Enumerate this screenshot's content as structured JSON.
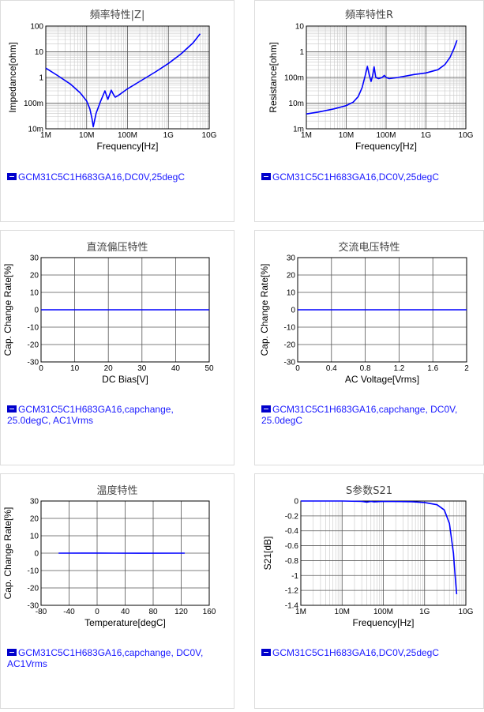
{
  "chart_data": [
    {
      "id": "z",
      "type": "line",
      "title": "頻率特性|Z|",
      "xlabel": "Frequency[Hz]",
      "ylabel": "Impedance[ohm]",
      "x_scale": "log",
      "y_scale": "log",
      "xlim": [
        1000000,
        10000000000
      ],
      "ylim": [
        0.01,
        100
      ],
      "x_ticks": [
        "1M",
        "10M",
        "100M",
        "1G",
        "10G"
      ],
      "y_ticks": [
        "10m",
        "100m",
        "1",
        "10",
        "100"
      ],
      "series": [
        {
          "name": "GCM31C5C1H683GA16,DC0V,25degC",
          "color": "#0000ff",
          "x": [
            1000000,
            2000000,
            4000000,
            7000000,
            10000000,
            12000000,
            13500000,
            14500000,
            17000000,
            22000000,
            28000000,
            33000000,
            36000000,
            40000000,
            45000000,
            50000000,
            60000000,
            80000000,
            100000000,
            200000000,
            500000000,
            1000000000,
            2000000000,
            4000000000,
            6000000000
          ],
          "y": [
            2.3,
            1.15,
            0.55,
            0.25,
            0.12,
            0.06,
            0.025,
            0.012,
            0.04,
            0.12,
            0.3,
            0.14,
            0.2,
            0.32,
            0.22,
            0.17,
            0.2,
            0.28,
            0.36,
            0.7,
            1.7,
            3.5,
            8,
            22,
            50
          ]
        }
      ]
    },
    {
      "id": "r",
      "type": "line",
      "title": "頻率特性R",
      "xlabel": "Frequency[Hz]",
      "ylabel": "Resistance[ohm]",
      "x_scale": "log",
      "y_scale": "log",
      "xlim": [
        1000000,
        10000000000
      ],
      "ylim": [
        0.001,
        10
      ],
      "x_ticks": [
        "1M",
        "10M",
        "100M",
        "1G",
        "10G"
      ],
      "y_ticks": [
        "1m",
        "10m",
        "100m",
        "1",
        "10"
      ],
      "series": [
        {
          "name": "GCM31C5C1H683GA16,DC0V,25degC",
          "color": "#0000ff",
          "x": [
            1000000,
            2000000,
            5000000,
            10000000,
            15000000,
            20000000,
            25000000,
            30000000,
            34000000,
            38000000,
            42000000,
            46000000,
            50000000,
            55000000,
            65000000,
            80000000,
            90000000,
            100000000,
            120000000,
            200000000,
            500000000,
            1000000000,
            2000000000,
            3000000000,
            4000000000,
            5000000000,
            6000000000
          ],
          "y": [
            0.0038,
            0.0045,
            0.006,
            0.008,
            0.011,
            0.018,
            0.04,
            0.12,
            0.27,
            0.12,
            0.07,
            0.12,
            0.26,
            0.1,
            0.09,
            0.1,
            0.12,
            0.1,
            0.09,
            0.1,
            0.13,
            0.15,
            0.2,
            0.32,
            0.6,
            1.3,
            2.8
          ]
        }
      ]
    },
    {
      "id": "dc",
      "type": "line",
      "title": "直流偏压特性",
      "xlabel": "DC Bias[V]",
      "ylabel": "Cap. Change Rate[%]",
      "xlim": [
        0,
        50
      ],
      "ylim": [
        -30,
        30
      ],
      "x_ticks": [
        "0",
        "10",
        "20",
        "30",
        "40",
        "50"
      ],
      "y_ticks": [
        "30",
        "20",
        "10",
        "0",
        "-10",
        "-20",
        "-30"
      ],
      "series": [
        {
          "name": "GCM31C5C1H683GA16,capchange, 25.0degC, AC1Vrms",
          "color": "#0000ff",
          "x": [
            0,
            50
          ],
          "y": [
            0,
            0
          ]
        }
      ]
    },
    {
      "id": "ac",
      "type": "line",
      "title": "交流电压特性",
      "xlabel": "AC Voltage[Vrms]",
      "ylabel": "Cap. Change Rate[%]",
      "xlim": [
        0,
        2
      ],
      "ylim": [
        -30,
        30
      ],
      "x_ticks": [
        "0",
        "0.4",
        "0.8",
        "1.2",
        "1.6",
        "2"
      ],
      "y_ticks": [
        "30",
        "20",
        "10",
        "0",
        "-10",
        "-20",
        "-30"
      ],
      "series": [
        {
          "name": "GCM31C5C1H683GA16,capchange, DC0V, 25.0degC",
          "color": "#0000ff",
          "x": [
            0,
            2
          ],
          "y": [
            0,
            0
          ]
        }
      ]
    },
    {
      "id": "temp",
      "type": "line",
      "title": "温度特性",
      "xlabel": "Temperature[degC]",
      "ylabel": "Cap. Change Rate[%]",
      "xlim": [
        -80,
        160
      ],
      "ylim": [
        -30,
        30
      ],
      "x_ticks": [
        "-80",
        "-40",
        "0",
        "40",
        "80",
        "120",
        "160"
      ],
      "y_ticks": [
        "30",
        "20",
        "10",
        "0",
        "-10",
        "-20",
        "-30"
      ],
      "series": [
        {
          "name": "GCM31C5C1H683GA16,capchange, DC0V, AC1Vrms",
          "color": "#0000ff",
          "x": [
            -55,
            -20,
            25,
            60,
            125
          ],
          "y": [
            0,
            0.05,
            0,
            -0.05,
            0
          ]
        }
      ]
    },
    {
      "id": "s21",
      "type": "line",
      "title": "S参数S21",
      "xlabel": "Frequency[Hz]",
      "ylabel": "S21[dB]",
      "x_scale": "log",
      "xlim": [
        1000000,
        10000000000
      ],
      "ylim": [
        -1.4,
        0
      ],
      "x_ticks": [
        "1M",
        "10M",
        "100M",
        "1G",
        "10G"
      ],
      "y_ticks": [
        "0",
        "-0.2",
        "-0.4",
        "-0.6",
        "-0.8",
        "-1",
        "-1.2",
        "-1.4"
      ],
      "series": [
        {
          "name": "GCM31C5C1H683GA16,DC0V,25degC",
          "color": "#0000ff",
          "x": [
            1000000,
            10000000,
            30000000,
            40000000,
            50000000,
            60000000,
            100000000,
            500000000,
            1000000000,
            2000000000,
            3000000000,
            4000000000,
            5000000000,
            5500000000,
            6000000000
          ],
          "y": [
            0,
            0,
            -0.005,
            -0.015,
            -0.005,
            -0.012,
            -0.005,
            -0.01,
            -0.02,
            -0.05,
            -0.12,
            -0.3,
            -0.7,
            -1.0,
            -1.25
          ]
        }
      ]
    }
  ]
}
